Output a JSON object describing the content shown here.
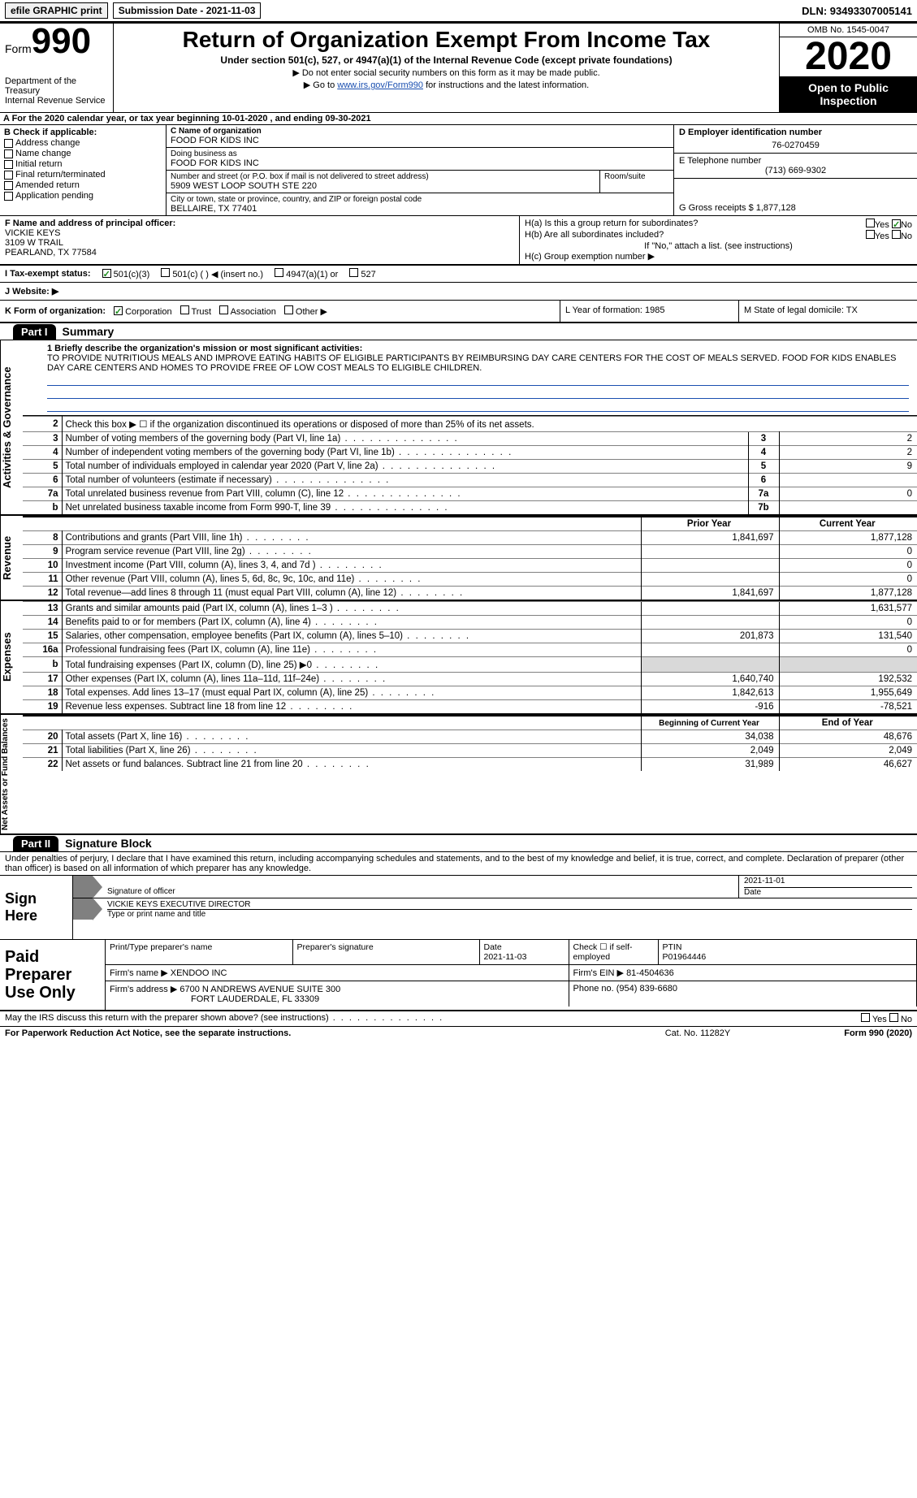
{
  "topbar": {
    "efile_label": "efile GRAPHIC print",
    "submission_label": "Submission Date - 2021-11-03",
    "dln": "DLN: 93493307005141"
  },
  "header": {
    "form_word": "Form",
    "form_num": "990",
    "dept": "Department of the Treasury\nInternal Revenue Service",
    "title": "Return of Organization Exempt From Income Tax",
    "subtitle": "Under section 501(c), 527, or 4947(a)(1) of the Internal Revenue Code (except private foundations)",
    "note1": "▶ Do not enter social security numbers on this form as it may be made public.",
    "note2_pre": "▶ Go to ",
    "note2_link": "www.irs.gov/Form990",
    "note2_post": " for instructions and the latest information.",
    "omb": "OMB No. 1545-0047",
    "year": "2020",
    "open_pub": "Open to Public Inspection"
  },
  "period": "A For the 2020 calendar year, or tax year beginning 10-01-2020    , and ending 09-30-2021",
  "boxB": {
    "label": "B Check if applicable:",
    "items": [
      "Address change",
      "Name change",
      "Initial return",
      "Final return/terminated",
      "Amended return",
      "Application pending"
    ]
  },
  "boxC": {
    "name_lbl": "C Name of organization",
    "name": "FOOD FOR KIDS INC",
    "dba_lbl": "Doing business as",
    "dba": "FOOD FOR KIDS INC",
    "street_lbl": "Number and street (or P.O. box if mail is not delivered to street address)",
    "room_lbl": "Room/suite",
    "street": "5909 WEST LOOP SOUTH STE 220",
    "city_lbl": "City or town, state or province, country, and ZIP or foreign postal code",
    "city": "BELLAIRE, TX  77401"
  },
  "boxD_lbl": "D Employer identification number",
  "boxD_val": "76-0270459",
  "boxE_lbl": "E Telephone number",
  "boxE_val": "(713) 669-9302",
  "boxG": "G Gross receipts $ 1,877,128",
  "boxF": {
    "label": "F  Name and address of principal officer:",
    "name": "VICKIE KEYS",
    "addr1": "3109 W TRAIL",
    "addr2": "PEARLAND, TX  77584"
  },
  "boxH": {
    "a": "H(a)  Is this a group return for subordinates?",
    "b": "H(b)  Are all subordinates included?",
    "ifno": "If \"No,\" attach a list. (see instructions)",
    "c": "H(c)  Group exemption number ▶"
  },
  "yes": "Yes",
  "no": "No",
  "taxI": {
    "label": "I  Tax-exempt status:",
    "c3": "501(c)(3)",
    "c": "501(c) (  ) ◀ (insert no.)",
    "a1": "4947(a)(1) or",
    "s527": "527"
  },
  "boxJ_lbl": "J  Website: ▶",
  "boxK": {
    "label": "K Form of organization:",
    "corp": "Corporation",
    "trust": "Trust",
    "assoc": "Association",
    "other": "Other ▶"
  },
  "boxL": "L Year of formation: 1985",
  "boxM": "M State of legal domicile: TX",
  "part1_hdr": "Part I",
  "part1_title": "Summary",
  "vtab_gov": "Activities & Governance",
  "vtab_rev": "Revenue",
  "vtab_exp": "Expenses",
  "vtab_net": "Net Assets or Fund Balances",
  "mission_label": "1  Briefly describe the organization's mission or most significant activities:",
  "mission_text": "TO PROVIDE NUTRITIOUS MEALS AND IMPROVE EATING HABITS OF ELIGIBLE PARTICIPANTS BY REIMBURSING DAY CARE CENTERS FOR THE COST OF MEALS SERVED. FOOD FOR KIDS ENABLES DAY CARE CENTERS AND HOMES TO PROVIDE FREE OF LOW COST MEALS TO ELIGIBLE CHILDREN.",
  "gov_rows": [
    {
      "n": "2",
      "desc": "Check this box ▶ ☐  if the organization discontinued its operations or disposed of more than 25% of its net assets.",
      "box": "",
      "val": ""
    },
    {
      "n": "3",
      "desc": "Number of voting members of the governing body (Part VI, line 1a)",
      "box": "3",
      "val": "2",
      "dots": true
    },
    {
      "n": "4",
      "desc": "Number of independent voting members of the governing body (Part VI, line 1b)",
      "box": "4",
      "val": "2",
      "dots": true
    },
    {
      "n": "5",
      "desc": "Total number of individuals employed in calendar year 2020 (Part V, line 2a)",
      "box": "5",
      "val": "9",
      "dots": true
    },
    {
      "n": "6",
      "desc": "Total number of volunteers (estimate if necessary)",
      "box": "6",
      "val": "",
      "dots": true
    },
    {
      "n": "7a",
      "desc": "Total unrelated business revenue from Part VIII, column (C), line 12",
      "box": "7a",
      "val": "0",
      "dots": true
    },
    {
      "n": "b",
      "desc": "Net unrelated business taxable income from Form 990-T, line 39",
      "box": "7b",
      "val": "",
      "dots": true
    }
  ],
  "prior_label": "Prior Year",
  "current_label": "Current Year",
  "rev_rows": [
    {
      "n": "8",
      "desc": "Contributions and grants (Part VIII, line 1h)",
      "py": "1,841,697",
      "cy": "1,877,128"
    },
    {
      "n": "9",
      "desc": "Program service revenue (Part VIII, line 2g)",
      "py": "",
      "cy": "0"
    },
    {
      "n": "10",
      "desc": "Investment income (Part VIII, column (A), lines 3, 4, and 7d )",
      "py": "",
      "cy": "0"
    },
    {
      "n": "11",
      "desc": "Other revenue (Part VIII, column (A), lines 5, 6d, 8c, 9c, 10c, and 11e)",
      "py": "",
      "cy": "0"
    },
    {
      "n": "12",
      "desc": "Total revenue—add lines 8 through 11 (must equal Part VIII, column (A), line 12)",
      "py": "1,841,697",
      "cy": "1,877,128"
    }
  ],
  "exp_rows": [
    {
      "n": "13",
      "desc": "Grants and similar amounts paid (Part IX, column (A), lines 1–3 )",
      "py": "",
      "cy": "1,631,577"
    },
    {
      "n": "14",
      "desc": "Benefits paid to or for members (Part IX, column (A), line 4)",
      "py": "",
      "cy": "0"
    },
    {
      "n": "15",
      "desc": "Salaries, other compensation, employee benefits (Part IX, column (A), lines 5–10)",
      "py": "201,873",
      "cy": "131,540"
    },
    {
      "n": "16a",
      "desc": "Professional fundraising fees (Part IX, column (A), line 11e)",
      "py": "",
      "cy": "0"
    },
    {
      "n": "b",
      "desc": "Total fundraising expenses (Part IX, column (D), line 25) ▶0",
      "py": "grey",
      "cy": "grey"
    },
    {
      "n": "17",
      "desc": "Other expenses (Part IX, column (A), lines 11a–11d, 11f–24e)",
      "py": "1,640,740",
      "cy": "192,532"
    },
    {
      "n": "18",
      "desc": "Total expenses. Add lines 13–17 (must equal Part IX, column (A), line 25)",
      "py": "1,842,613",
      "cy": "1,955,649"
    },
    {
      "n": "19",
      "desc": "Revenue less expenses. Subtract line 18 from line 12",
      "py": "-916",
      "cy": "-78,521"
    }
  ],
  "begin_label": "Beginning of Current Year",
  "end_label": "End of Year",
  "net_rows": [
    {
      "n": "20",
      "desc": "Total assets (Part X, line 16)",
      "py": "34,038",
      "cy": "48,676"
    },
    {
      "n": "21",
      "desc": "Total liabilities (Part X, line 26)",
      "py": "2,049",
      "cy": "2,049"
    },
    {
      "n": "22",
      "desc": "Net assets or fund balances. Subtract line 21 from line 20",
      "py": "31,989",
      "cy": "46,627"
    }
  ],
  "part2_hdr": "Part II",
  "part2_title": "Signature Block",
  "penalty": "Under penalties of perjury, I declare that I have examined this return, including accompanying schedules and statements, and to the best of my knowledge and belief, it is true, correct, and complete. Declaration of preparer (other than officer) is based on all information of which preparer has any knowledge.",
  "sign_here": "Sign Here",
  "sig_officer_lbl": "Signature of officer",
  "sig_date_lbl": "Date",
  "sig_date_val": "2021-11-01",
  "sig_name_lbl": "Type or print name and title",
  "sig_name_val": "VICKIE KEYS  EXECUTIVE DIRECTOR",
  "paid_left": "Paid Preparer Use Only",
  "paid": {
    "prep_name_lbl": "Print/Type preparer's name",
    "prep_sig_lbl": "Preparer's signature",
    "date_lbl": "Date",
    "date_val": "2021-11-03",
    "check_lbl": "Check ☐ if self-employed",
    "ptin_lbl": "PTIN",
    "ptin_val": "P01964446",
    "firm_name_lbl": "Firm's name    ▶",
    "firm_name": "XENDOO INC",
    "firm_ein_lbl": "Firm's EIN ▶",
    "firm_ein": "81-4504636",
    "firm_addr_lbl": "Firm's address ▶",
    "firm_addr1": "6700 N ANDREWS AVENUE SUITE 300",
    "firm_addr2": "FORT LAUDERDALE, FL  33309",
    "phone_lbl": "Phone no.",
    "phone_val": "(954) 839-6680"
  },
  "discuss": "May the IRS discuss this return with the preparer shown above? (see instructions)",
  "footer_left": "For Paperwork Reduction Act Notice, see the separate instructions.",
  "footer_mid": "Cat. No. 11282Y",
  "footer_right": "Form 990 (2020)",
  "colors": {
    "link": "#1a4fb0",
    "black": "#000000",
    "grey_cell": "#d9d9d9",
    "arrow_grey": "#808080",
    "check_green": "#1a8c1a"
  }
}
